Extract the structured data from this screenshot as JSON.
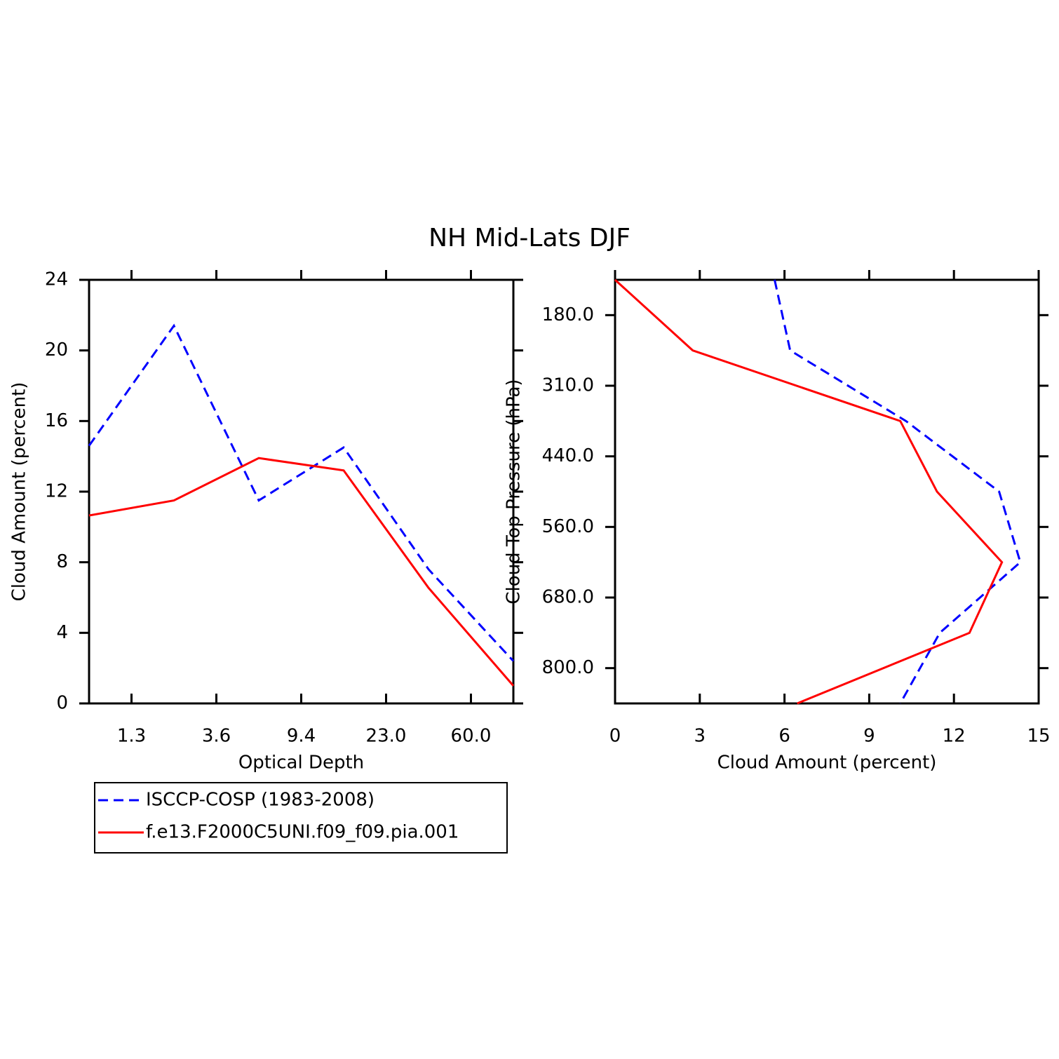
{
  "title": "NH Mid-Lats DJF",
  "chart_data": [
    {
      "type": "line",
      "x": [
        0,
        1,
        2,
        3,
        4,
        5
      ],
      "xlim": [
        0,
        5
      ],
      "xticks": [
        {
          "value": 0.5,
          "label": "1.3"
        },
        {
          "value": 1.5,
          "label": "3.6"
        },
        {
          "value": 2.5,
          "label": "9.4"
        },
        {
          "value": 3.5,
          "label": "23.0"
        },
        {
          "value": 4.5,
          "label": "60.0"
        }
      ],
      "ylim": [
        0,
        24
      ],
      "yticks": [
        0,
        4,
        8,
        12,
        16,
        20,
        24
      ],
      "xlabel": "Optical Depth",
      "ylabel": "Cloud Amount (percent)",
      "series": [
        {
          "name": "ISCCP-COSP (1983-2008)",
          "color": "#0000ff",
          "dash": true,
          "values": [
            14.6,
            21.4,
            11.5,
            14.5,
            7.6,
            2.4
          ]
        },
        {
          "name": "f.e13.F2000C5UNI.f09_f09.pia.001",
          "color": "#ff0000",
          "dash": false,
          "values": [
            10.65,
            11.5,
            13.9,
            13.2,
            6.55,
            1.0
          ]
        }
      ],
      "legend": true
    },
    {
      "type": "line-horizontal",
      "y": [
        0,
        1,
        2,
        3,
        4,
        5,
        6
      ],
      "ylim": [
        6,
        0
      ],
      "yticks": [
        {
          "value": 0.5,
          "label": "180.0"
        },
        {
          "value": 1.5,
          "label": "310.0"
        },
        {
          "value": 2.5,
          "label": "440.0"
        },
        {
          "value": 3.5,
          "label": "560.0"
        },
        {
          "value": 4.5,
          "label": "680.0"
        },
        {
          "value": 5.5,
          "label": "800.0"
        }
      ],
      "xlim": [
        0,
        15
      ],
      "xticks": [
        0,
        3,
        6,
        9,
        12,
        15
      ],
      "xlabel": "Cloud Amount (percent)",
      "ylabel": "Cloud Top Pressure (hPa)",
      "series": [
        {
          "name": "ISCCP-COSP (1983-2008)",
          "color": "#0000ff",
          "dash": true,
          "values": [
            5.65,
            6.2,
            10.3,
            13.6,
            14.35,
            11.5,
            10.1
          ]
        },
        {
          "name": "f.e13.F2000C5UNI.f09_f09.pia.001",
          "color": "#ff0000",
          "dash": false,
          "values": [
            0.0,
            2.75,
            10.1,
            11.4,
            13.7,
            12.55,
            6.45
          ]
        }
      ],
      "legend": false
    }
  ]
}
